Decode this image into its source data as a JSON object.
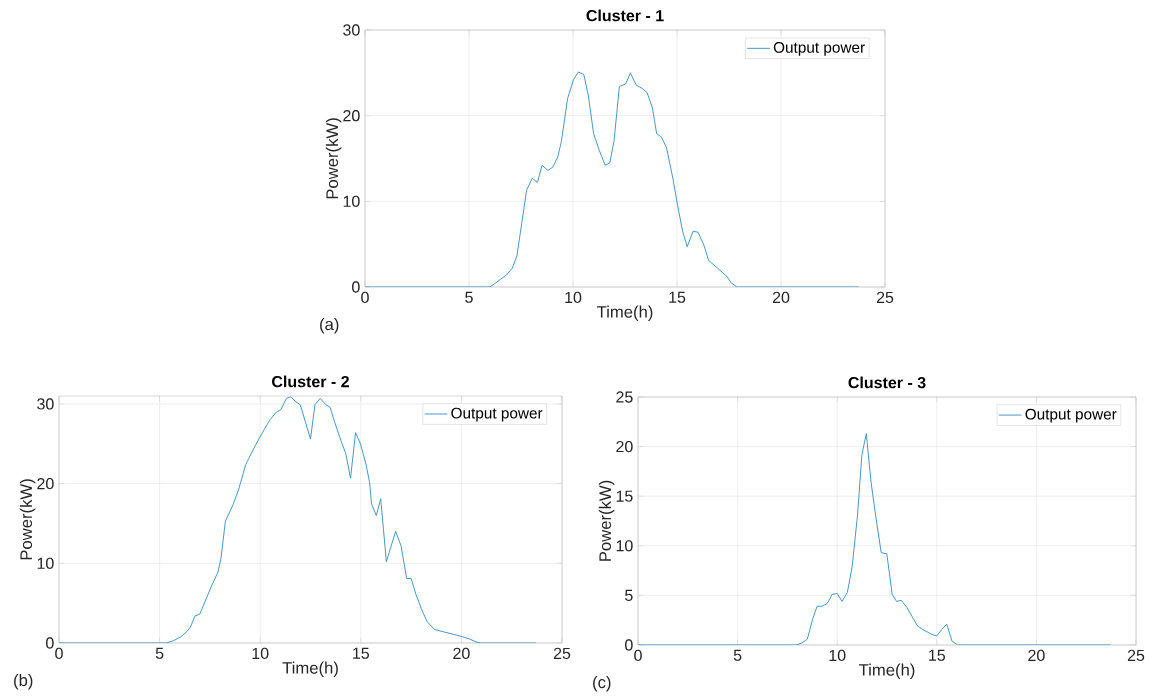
{
  "chart_data": [
    {
      "type": "line",
      "title": "Cluster - 1",
      "xlabel": "Time(h)",
      "ylabel": "Power(kW)",
      "annotations": [
        "(a)"
      ],
      "xlim": [
        0,
        25
      ],
      "ylim": [
        0,
        30
      ],
      "xticks": [
        0,
        5,
        10,
        15,
        20,
        25
      ],
      "yticks": [
        0,
        10,
        20,
        30
      ],
      "grid": true,
      "legend": "top right",
      "series": [
        {
          "name": "Output power",
          "color": "#3a8fc7",
          "x": [
            0,
            6.0,
            6.24,
            6.8,
            7.08,
            7.3,
            7.77,
            8.04,
            8.29,
            8.51,
            8.8,
            9.03,
            9.27,
            9.44,
            9.74,
            10.02,
            10.26,
            10.52,
            10.74,
            10.99,
            11.27,
            11.55,
            11.77,
            11.97,
            12.23,
            12.53,
            12.76,
            13.03,
            13.31,
            13.56,
            13.82,
            14.02,
            14.25,
            14.49,
            14.8,
            15.03,
            15.27,
            15.49,
            15.77,
            16.01,
            16.29,
            16.52,
            16.95,
            17.41,
            17.6,
            17.88,
            23.74
          ],
          "values": [
            0,
            0,
            0.4,
            1.4,
            2.2,
            3.6,
            11.3,
            12.7,
            12.2,
            14.2,
            13.6,
            14.0,
            15.2,
            17,
            22,
            24.2,
            25.1,
            24.8,
            22.3,
            17.9,
            15.9,
            14.2,
            14.5,
            17,
            23.4,
            23.7,
            25,
            23.6,
            23.2,
            22.7,
            20.9,
            17.9,
            17.5,
            16.3,
            12.7,
            9.5,
            6.5,
            4.7,
            6.5,
            6.4,
            4.9,
            3.1,
            2.2,
            1.2,
            0.5,
            0,
            0
          ]
        }
      ]
    },
    {
      "type": "line",
      "title": "Cluster - 2",
      "xlabel": "Time(h)",
      "ylabel": "Power(kW)",
      "annotations": [
        "(b)"
      ],
      "xlim": [
        0,
        25
      ],
      "ylim": [
        0,
        31
      ],
      "xticks": [
        0,
        5,
        10,
        15,
        20,
        25
      ],
      "yticks": [
        0,
        10,
        20,
        30
      ],
      "grid": true,
      "legend": "top right",
      "series": [
        {
          "name": "Output power",
          "color": "#3a8fc7",
          "x": [
            0,
            5.33,
            5.7,
            6.07,
            6.34,
            6.53,
            6.76,
            6.99,
            7.26,
            7.57,
            7.9,
            8.05,
            8.27,
            8.64,
            8.92,
            9.28,
            9.74,
            10.11,
            10.48,
            10.81,
            11.03,
            11.3,
            11.53,
            11.76,
            11.99,
            12.24,
            12.5,
            12.72,
            12.98,
            13.27,
            13.47,
            13.69,
            14.01,
            14.25,
            14.49,
            14.74,
            14.98,
            15.26,
            15.44,
            15.53,
            15.77,
            15.99,
            16.27,
            16.73,
            17.0,
            17.28,
            17.5,
            17.74,
            18.01,
            18.29,
            18.66,
            19.12,
            19.58,
            20.04,
            20.4,
            20.77,
            20.96,
            23.71
          ],
          "values": [
            0,
            0,
            0.3,
            0.8,
            1.4,
            2.0,
            3.4,
            3.6,
            5.2,
            7.1,
            8.9,
            10.6,
            15.3,
            17.3,
            19.2,
            22.4,
            24.7,
            26.4,
            28.0,
            29.0,
            29.3,
            30.7,
            30.9,
            30.3,
            29.9,
            27.8,
            25.6,
            29.9,
            30.7,
            29.9,
            29.6,
            27.8,
            25.4,
            23.8,
            20.7,
            26.4,
            25.0,
            22.4,
            20.1,
            17.5,
            16.0,
            18.1,
            10.2,
            14.0,
            12.2,
            8.1,
            8.1,
            6.1,
            4.3,
            2.7,
            1.7,
            1.4,
            1.1,
            0.8,
            0.5,
            0.1,
            0,
            0
          ]
        }
      ]
    },
    {
      "type": "line",
      "title": "Cluster - 3",
      "xlabel": "Time(h)",
      "ylabel": "Power(kW)",
      "annotations": [
        "(c)"
      ],
      "xlim": [
        0,
        25
      ],
      "ylim": [
        0,
        25
      ],
      "xticks": [
        0,
        5,
        10,
        15,
        20,
        25
      ],
      "yticks": [
        0,
        5,
        10,
        15,
        20,
        25
      ],
      "grid": true,
      "legend": "top right",
      "series": [
        {
          "name": "Output power",
          "color": "#3a8fc7",
          "x": [
            0,
            7.95,
            8.23,
            8.5,
            8.78,
            8.99,
            9.23,
            9.51,
            9.74,
            10.0,
            10.24,
            10.51,
            10.75,
            11.02,
            11.24,
            11.46,
            11.7,
            11.94,
            12.21,
            12.49,
            12.76,
            12.98,
            13.22,
            13.49,
            13.75,
            14.04,
            14.35,
            14.72,
            14.99,
            15.26,
            15.5,
            15.76,
            16.05,
            23.73
          ],
          "values": [
            0,
            0,
            0.2,
            0.6,
            2.7,
            3.9,
            3.9,
            4.2,
            5.1,
            5.2,
            4.4,
            5.3,
            7.9,
            13.1,
            19.2,
            21.3,
            16.4,
            12.9,
            9.3,
            9.2,
            5.1,
            4.4,
            4.5,
            3.8,
            2.9,
            1.9,
            1.5,
            1.1,
            0.9,
            1.6,
            2.1,
            0.4,
            0,
            0
          ]
        }
      ]
    }
  ]
}
